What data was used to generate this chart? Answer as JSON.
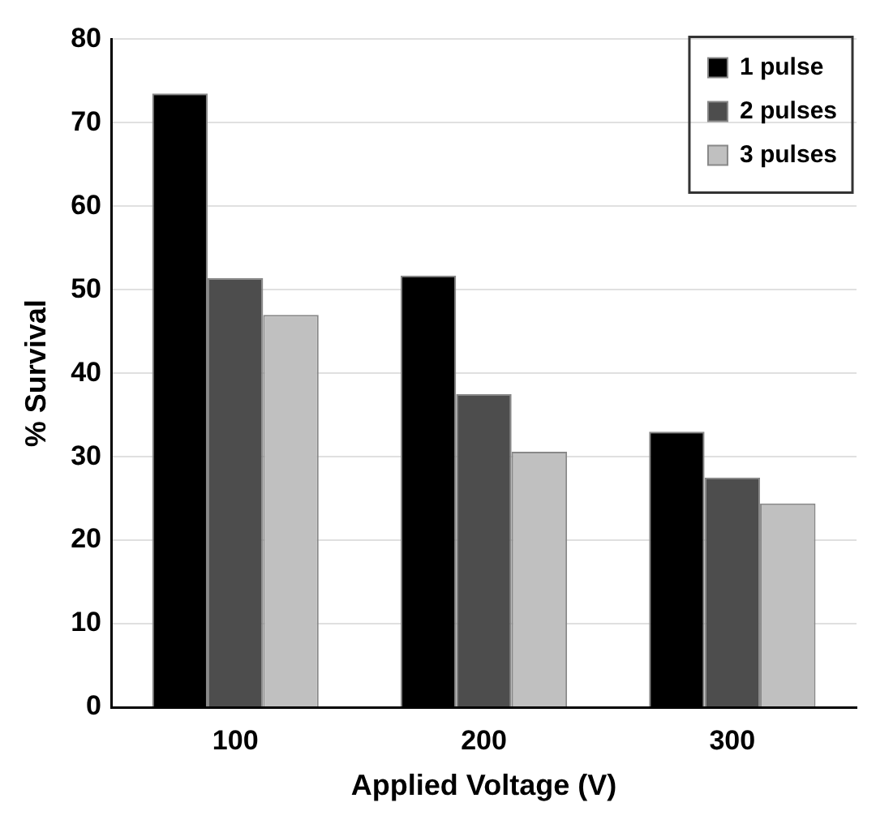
{
  "chart_data": {
    "type": "bar",
    "xlabel": "Applied Voltage (V)",
    "ylabel": "% Survival",
    "categories": [
      "100",
      "200",
      "300"
    ],
    "series": [
      {
        "name": "1 pulse",
        "color": "#000000",
        "values": [
          73.5,
          51.7,
          33
        ]
      },
      {
        "name": "2 pulses",
        "color": "#4d4d4d",
        "values": [
          51.4,
          37.5,
          27.5
        ]
      },
      {
        "name": "3 pulses",
        "color": "#c0c0c0",
        "values": [
          47,
          30.6,
          24.4
        ]
      }
    ],
    "ylim": [
      0,
      80
    ],
    "yticks": [
      0,
      10,
      20,
      30,
      40,
      50,
      60,
      70,
      80
    ],
    "grid": "y",
    "legend": "top right"
  }
}
